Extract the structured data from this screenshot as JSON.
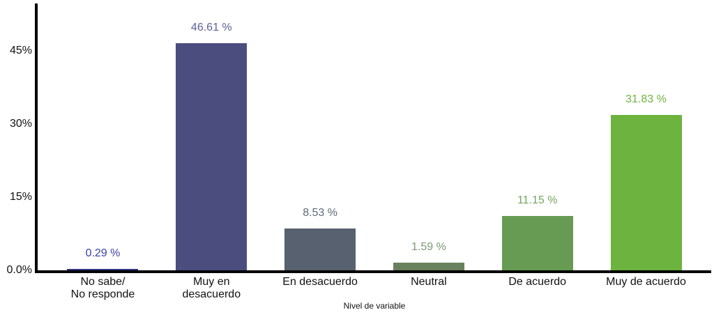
{
  "chart_data": {
    "type": "bar",
    "title": "",
    "xlabel": "Nivel de variable",
    "ylabel": "",
    "categories": [
      "No sabe/ No responde",
      "Muy en desacuerdo",
      "En desacuerdo",
      "Neutral",
      "De acuerdo",
      "Muy de acuerdo"
    ],
    "category_lines": [
      [
        "No sabe/",
        "No responde"
      ],
      [
        "Muy en",
        "desacuerdo"
      ],
      [
        "En desacuerdo"
      ],
      [
        "Neutral"
      ],
      [
        "De acuerdo"
      ],
      [
        "Muy de acuerdo"
      ]
    ],
    "values": [
      0.29,
      46.61,
      8.53,
      1.59,
      11.15,
      31.83
    ],
    "value_labels": [
      "0.29 %",
      "46.61 %",
      "8.53 %",
      "1.59 %",
      "11.15 %",
      "31.83 %"
    ],
    "bar_colors": [
      "#2e3380",
      "#4a4d7d",
      "#57616f",
      "#69815f",
      "#679a52",
      "#6db33f"
    ],
    "value_label_colors": [
      "#3a3fa8",
      "#5c5f99",
      "#606974",
      "#7b9a72",
      "#74a65e",
      "#6fb442"
    ],
    "yticks": [
      {
        "value": 0,
        "label": "0.0%"
      },
      {
        "value": 15,
        "label": "15%"
      },
      {
        "value": 30,
        "label": "30%"
      },
      {
        "value": 45,
        "label": "45%"
      }
    ],
    "ylim": [
      0,
      54.7
    ],
    "grid": false,
    "legend_position": "none",
    "axis_color": "#000000",
    "background_color": "#ffffff",
    "tick_label_color": "#111111"
  }
}
